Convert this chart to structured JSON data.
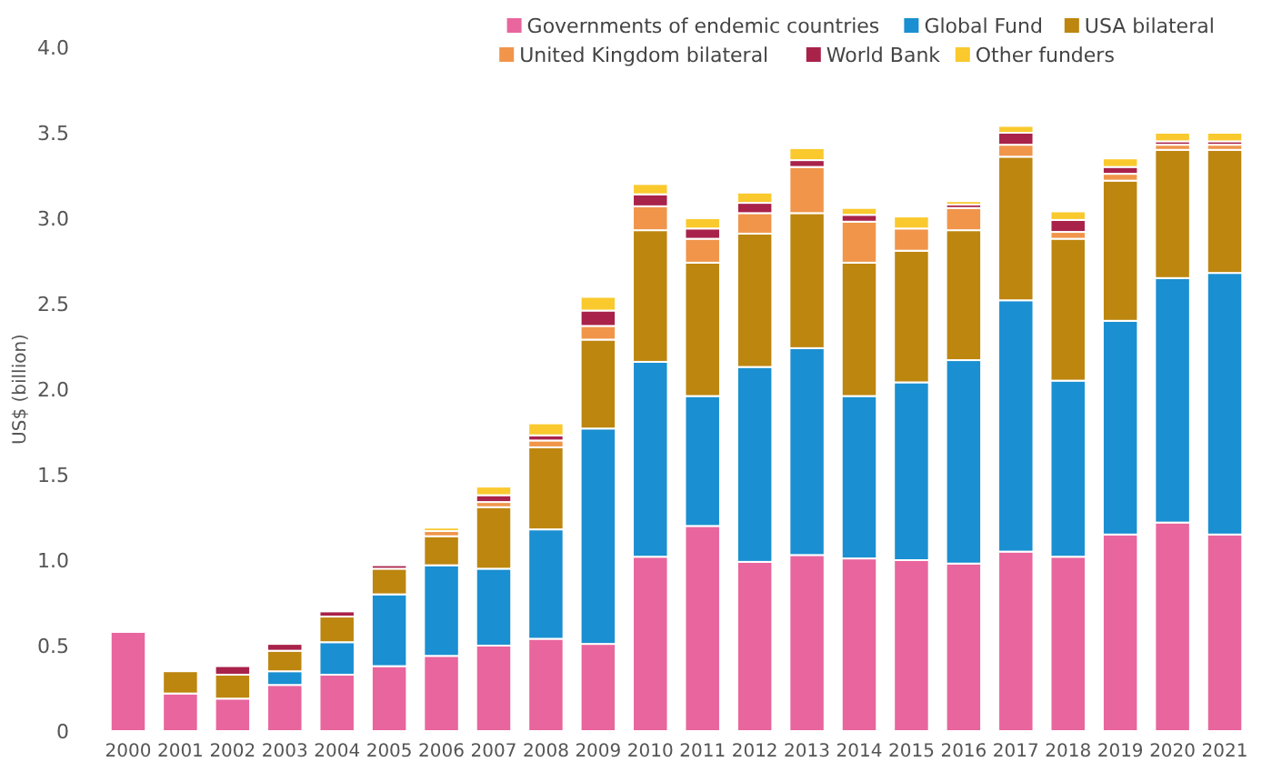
{
  "chart_data": {
    "type": "bar",
    "stacked": true,
    "ylabel": "US$ (billion)",
    "categories": [
      "2000",
      "2001",
      "2002",
      "2003",
      "2004",
      "2005",
      "2006",
      "2007",
      "2008",
      "2009",
      "2010",
      "2011",
      "2012",
      "2013",
      "2014",
      "2015",
      "2016",
      "2017",
      "2018",
      "2019",
      "2020",
      "2021"
    ],
    "series": [
      {
        "name": "Governments of endemic countries",
        "color": "#e8659d",
        "values": [
          0.58,
          0.22,
          0.19,
          0.27,
          0.33,
          0.38,
          0.44,
          0.5,
          0.54,
          0.51,
          1.02,
          1.2,
          0.99,
          1.03,
          1.01,
          1.0,
          0.98,
          1.05,
          1.02,
          1.15,
          1.22,
          1.15
        ]
      },
      {
        "name": "Global Fund",
        "color": "#1a8fd1",
        "values": [
          null,
          null,
          null,
          0.08,
          0.19,
          0.42,
          0.53,
          0.45,
          0.64,
          1.26,
          1.14,
          0.76,
          1.14,
          1.21,
          0.95,
          1.04,
          1.19,
          1.47,
          1.03,
          1.25,
          1.43,
          1.53
        ]
      },
      {
        "name": "USA bilateral",
        "color": "#bd860f",
        "values": [
          null,
          0.13,
          0.14,
          0.12,
          0.15,
          0.15,
          0.17,
          0.36,
          0.48,
          0.52,
          0.77,
          0.78,
          0.78,
          0.79,
          0.78,
          0.77,
          0.76,
          0.84,
          0.83,
          0.82,
          0.75,
          0.72
        ]
      },
      {
        "name": "United Kingdom bilateral",
        "color": "#f0954a",
        "values": [
          null,
          null,
          null,
          null,
          null,
          null,
          0.03,
          0.03,
          0.04,
          0.08,
          0.14,
          0.14,
          0.12,
          0.27,
          0.24,
          0.13,
          0.13,
          0.07,
          0.04,
          0.04,
          0.03,
          0.03
        ]
      },
      {
        "name": "World Bank",
        "color": "#a8224a",
        "values": [
          null,
          null,
          0.05,
          0.04,
          0.03,
          0.02,
          null,
          0.04,
          0.03,
          0.09,
          0.07,
          0.06,
          0.06,
          0.04,
          0.04,
          null,
          0.02,
          0.07,
          0.07,
          0.04,
          0.02,
          0.02
        ]
      },
      {
        "name": "Other funders",
        "color": "#f9c92e",
        "values": [
          null,
          null,
          null,
          null,
          null,
          null,
          0.02,
          0.05,
          0.07,
          0.08,
          0.06,
          0.06,
          0.06,
          0.07,
          0.04,
          0.07,
          0.02,
          0.04,
          0.05,
          0.05,
          0.05,
          0.05
        ]
      }
    ],
    "ylim": [
      0,
      4
    ],
    "yticks": [
      {
        "value": 0,
        "label": "0"
      },
      {
        "value": 0.5,
        "label": "0.5"
      },
      {
        "value": 1,
        "label": "1.0"
      },
      {
        "value": 1.5,
        "label": "1.5"
      },
      {
        "value": 2,
        "label": "2.0"
      },
      {
        "value": 2.5,
        "label": "2.5"
      },
      {
        "value": 3,
        "label": "3.0"
      },
      {
        "value": 3.5,
        "label": "3.5"
      },
      {
        "value": 4,
        "label": "4.0"
      }
    ],
    "grid": false,
    "legend": "top right"
  }
}
